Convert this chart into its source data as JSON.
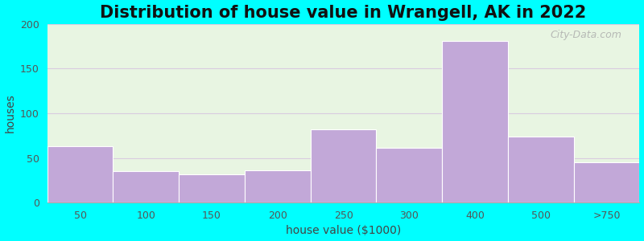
{
  "title": "Distribution of house value in Wrangell, AK in 2022",
  "xlabel": "house value ($1000)",
  "ylabel": "houses",
  "bin_edges": [
    0,
    1,
    2,
    3,
    4,
    5,
    6,
    7,
    8,
    9
  ],
  "tick_positions": [
    0,
    1,
    2,
    3,
    4,
    5,
    6,
    7,
    8,
    9
  ],
  "tick_labels": [
    "50",
    "100",
    "150",
    "200",
    "250",
    "300",
    "400",
    "500",
    "",
    ">750"
  ],
  "bar_labels": [
    "50",
    "100",
    "150",
    "200",
    "250",
    "300",
    "400",
    "500",
    ">750"
  ],
  "values": [
    63,
    35,
    32,
    36,
    82,
    61,
    181,
    74,
    45
  ],
  "bar_color": "#c2a8d8",
  "bar_edge_color": "#ffffff",
  "bg_outer": "#00ffff",
  "bg_plot": "#e8f5e2",
  "grid_color": "#d8cce0",
  "yticks": [
    0,
    50,
    100,
    150,
    200
  ],
  "ylim": [
    0,
    200
  ],
  "title_fontsize": 15,
  "axis_label_fontsize": 10,
  "tick_fontsize": 9,
  "watermark_text": "City-Data.com"
}
